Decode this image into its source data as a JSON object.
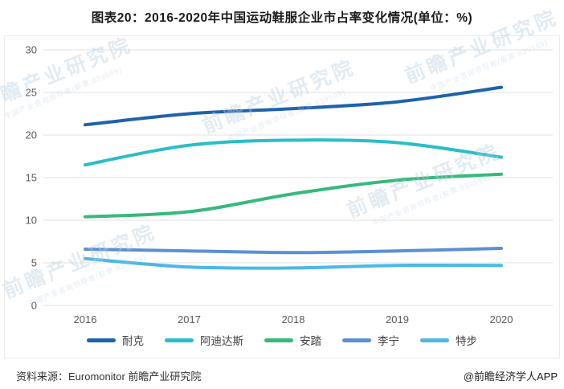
{
  "title": "图表20：2016-2020年中国运动鞋服企业市占率变化情况(单位：%)",
  "footer": {
    "source": "资料来源：Euromonitor 前瞻产业研究院",
    "credit": "@前瞻经济学人APP"
  },
  "watermark": {
    "main": "前瞻产业研究院",
    "sub": "中国产业咨询领导者(股票:839599)"
  },
  "colors": {
    "grid": "#e2e2e2",
    "axis_text": "#595959"
  },
  "chart_data": {
    "type": "line",
    "title": "图表20：2016-2020年中国运动鞋服企业市占率变化情况(单位：%)",
    "categories": [
      "2016",
      "2017",
      "2018",
      "2019",
      "2020"
    ],
    "series": [
      {
        "name": "耐克",
        "color": "#1e62ab",
        "values": [
          21.2,
          22.5,
          23.1,
          23.9,
          25.6
        ]
      },
      {
        "name": "阿迪达斯",
        "color": "#2abec6",
        "values": [
          16.5,
          18.8,
          19.4,
          19.1,
          17.4
        ]
      },
      {
        "name": "安踏",
        "color": "#36b97d",
        "values": [
          10.4,
          11.0,
          13.1,
          14.7,
          15.4
        ]
      },
      {
        "name": "李宁",
        "color": "#5b90d2",
        "values": [
          6.6,
          6.4,
          6.2,
          6.4,
          6.7
        ]
      },
      {
        "name": "特步",
        "color": "#4bb8e8",
        "values": [
          5.5,
          4.5,
          4.4,
          4.7,
          4.7
        ]
      }
    ],
    "xlabel": "",
    "ylabel": "",
    "ylim": [
      0,
      30
    ],
    "yticks": [
      0,
      5,
      10,
      15,
      20,
      25,
      30
    ],
    "grid": true,
    "legend_position": "bottom"
  }
}
